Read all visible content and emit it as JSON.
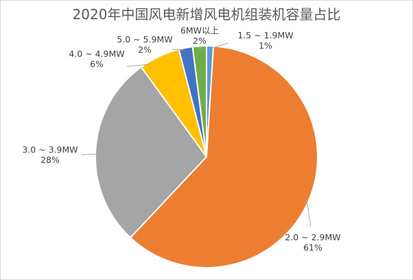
{
  "chart_data": {
    "type": "pie",
    "title": "2020年中国风电新增风电机组装机容量占比",
    "slices": [
      {
        "label": "1.5 ~ 1.9MW",
        "value": 1,
        "pct_label": "1%",
        "color": "#5b9bd5"
      },
      {
        "label": "2.0 ~ 2.9MW",
        "value": 61,
        "pct_label": "61%",
        "color": "#ed7d31"
      },
      {
        "label": "3.0 ~ 3.9MW",
        "value": 28,
        "pct_label": "28%",
        "color": "#a5a5a5"
      },
      {
        "label": "4.0 ~ 4.9MW",
        "value": 6,
        "pct_label": "6%",
        "color": "#ffc000"
      },
      {
        "label": "5.0 ~ 5.9MW",
        "value": 2,
        "pct_label": "2%",
        "color": "#4472c4"
      },
      {
        "label": "6MW以上",
        "value": 2,
        "pct_label": "2%",
        "color": "#70ad47"
      }
    ],
    "start_angle_deg": 0,
    "direction": "clockwise",
    "legend": "none",
    "data_labels": "outside with leader lines"
  }
}
